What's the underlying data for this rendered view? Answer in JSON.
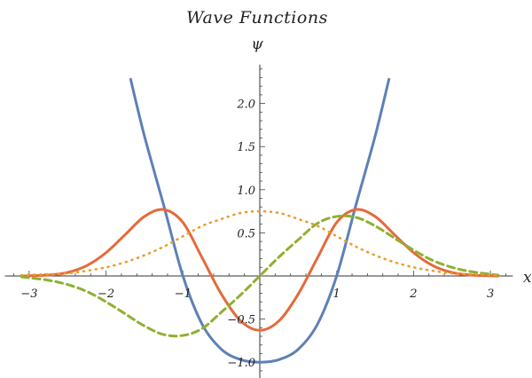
{
  "chart_data": {
    "type": "line",
    "title": "Wave Functions",
    "xlabel": "x",
    "ylabel": "ψ",
    "xlim": [
      -3.2,
      3.2
    ],
    "ylim": [
      -1.2,
      2.45
    ],
    "x_ticks": [
      -3,
      -2,
      -1,
      1,
      2,
      3
    ],
    "x_tick_labels": [
      "−3",
      "−2",
      "−1",
      "1",
      "2",
      "3"
    ],
    "y_ticks": [
      -1.0,
      -0.5,
      0.5,
      1.0,
      1.5,
      2.0
    ],
    "y_tick_labels": [
      "−1.0",
      "−0.5",
      "0.5",
      "1.0",
      "1.5",
      "2.0"
    ],
    "grid": false,
    "series": [
      {
        "color": "#5e81b5",
        "style": "solid",
        "x": [
          -1.68,
          -1.5,
          -1.25,
          -1.0,
          -0.75,
          -0.5,
          -0.25,
          0.0,
          0.25,
          0.5,
          0.75,
          1.0,
          1.25,
          1.5,
          1.68
        ],
        "values": [
          2.28,
          1.62,
          0.82,
          0.0,
          -0.56,
          -0.85,
          -0.97,
          -1.0,
          -0.97,
          -0.85,
          -0.56,
          0.0,
          0.82,
          1.62,
          2.28
        ]
      },
      {
        "color": "#e56a3a",
        "style": "solid",
        "x": [
          -3.1,
          -2.75,
          -2.5,
          -2.25,
          -2.0,
          -1.75,
          -1.5,
          -1.25,
          -1.0,
          -0.75,
          -0.5,
          -0.25,
          0.0,
          0.25,
          0.5,
          0.75,
          1.0,
          1.25,
          1.5,
          1.75,
          2.0,
          2.25,
          2.5,
          2.75,
          3.1
        ],
        "values": [
          0.0,
          0.01,
          0.04,
          0.12,
          0.27,
          0.48,
          0.69,
          0.77,
          0.62,
          0.21,
          -0.21,
          -0.52,
          -0.63,
          -0.52,
          -0.21,
          0.21,
          0.62,
          0.77,
          0.69,
          0.48,
          0.27,
          0.12,
          0.04,
          0.01,
          0.0
        ]
      },
      {
        "color": "#8fb032",
        "style": "dashed",
        "x": [
          -3.1,
          -2.75,
          -2.5,
          -2.25,
          -2.0,
          -1.75,
          -1.5,
          -1.25,
          -1.0,
          -0.75,
          -0.5,
          -0.25,
          0.0,
          0.25,
          0.5,
          0.75,
          1.0,
          1.25,
          1.5,
          1.75,
          2.0,
          2.25,
          2.5,
          2.75,
          3.1
        ],
        "values": [
          -0.01,
          -0.05,
          -0.1,
          -0.18,
          -0.3,
          -0.44,
          -0.58,
          -0.68,
          -0.69,
          -0.61,
          -0.42,
          -0.22,
          0.0,
          0.22,
          0.42,
          0.61,
          0.69,
          0.68,
          0.58,
          0.44,
          0.3,
          0.18,
          0.1,
          0.05,
          0.01
        ]
      },
      {
        "color": "#eb9d2e",
        "style": "dotted",
        "x": [
          -3.1,
          -2.75,
          -2.5,
          -2.25,
          -2.0,
          -1.75,
          -1.5,
          -1.25,
          -1.0,
          -0.75,
          -0.5,
          -0.25,
          0.0,
          0.25,
          0.5,
          0.75,
          1.0,
          1.25,
          1.5,
          1.75,
          2.0,
          2.25,
          2.5,
          2.75,
          3.1
        ],
        "values": [
          0.01,
          0.02,
          0.03,
          0.06,
          0.1,
          0.16,
          0.24,
          0.34,
          0.46,
          0.58,
          0.66,
          0.73,
          0.75,
          0.73,
          0.66,
          0.58,
          0.46,
          0.34,
          0.24,
          0.16,
          0.1,
          0.06,
          0.03,
          0.02,
          0.01
        ]
      }
    ]
  }
}
